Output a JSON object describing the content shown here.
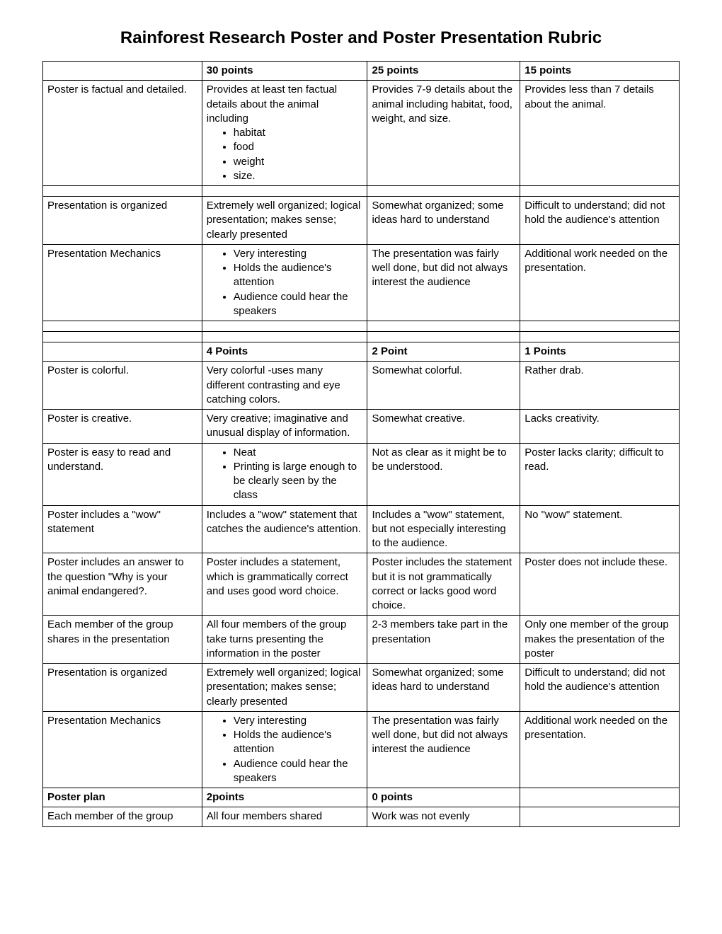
{
  "title": "Rainforest Research Poster and Poster Presentation Rubric",
  "hdr1": {
    "c1": "",
    "c2": "30 points",
    "c3": "25 points",
    "c4": "15 points"
  },
  "r1": {
    "criterion": "Poster is factual and detailed.",
    "lead": "Provides at least ten factual details about the animal including",
    "bullets": [
      "habitat",
      "food",
      "weight",
      "size."
    ],
    "c3": "Provides 7-9 details about the animal including habitat, food, weight, and size.",
    "c4": "Provides less than 7 details about the animal."
  },
  "r2": {
    "criterion": "Presentation is organized",
    "c2": "Extremely well organized; logical presentation; makes sense; clearly presented",
    "c3": "Somewhat organized; some ideas hard to understand",
    "c4": "Difficult to understand; did not hold the audience's attention"
  },
  "r3": {
    "criterion": "Presentation Mechanics",
    "bullets": [
      "Very interesting",
      "Holds the audience's attention",
      "Audience could hear the speakers"
    ],
    "c3": "The presentation was fairly well done, but did not always interest the audience",
    "c4": "Additional work needed on the presentation."
  },
  "hdr2": {
    "c1": "",
    "c2": "4 Points",
    "c3": "2 Point",
    "c4": "1 Points"
  },
  "r4": {
    "criterion": "Poster is colorful.",
    "c2": "Very colorful -uses many different contrasting and eye catching colors.",
    "c3": "Somewhat colorful.",
    "c4": "Rather drab."
  },
  "r5": {
    "criterion": "Poster is creative.",
    "c2": "Very creative; imaginative and unusual display of information.",
    "c3": "Somewhat creative.",
    "c4": "Lacks creativity."
  },
  "r6": {
    "criterion": "Poster is easy to read and understand.",
    "bullets": [
      "Neat",
      "Printing is large enough to be clearly seen by the class"
    ],
    "c3": "Not as clear as it might be to be understood.",
    "c4": "Poster lacks clarity; difficult to read."
  },
  "r7": {
    "criterion": "Poster includes a \"wow\" statement",
    "c2": "Includes a \"wow\" statement that catches the audience's attention.",
    "c3": "Includes a \"wow\" statement, but not especially interesting to the audience.",
    "c4": "No \"wow\" statement."
  },
  "r8": {
    "criterion": "Poster includes an answer to the question \"Why is your animal endangered?.",
    "c2": "Poster includes a statement, which is grammatically correct and uses good word choice.",
    "c3": "Poster includes the statement but it is not grammatically correct or lacks good word choice.",
    "c4": "Poster does not include these."
  },
  "r9": {
    "criterion": "Each member of the group shares in the presentation",
    "c2": "All four members of the group take turns presenting the information in the poster",
    "c3": "2-3 members take part in the presentation",
    "c4": "Only one member of the group makes the presentation of the poster"
  },
  "r10": {
    "criterion": "Presentation is organized",
    "c2": "Extremely well organized; logical presentation; makes sense; clearly presented",
    "c3": "Somewhat organized; some ideas hard to understand",
    "c4": "Difficult to understand; did not hold the audience's attention"
  },
  "r11": {
    "criterion": "Presentation Mechanics",
    "bullets": [
      "Very interesting",
      "Holds the audience's attention",
      "Audience could hear the speakers"
    ],
    "c3": "The presentation was fairly well done, but did not always interest the audience",
    "c4": "Additional work needed on the presentation."
  },
  "hdr3": {
    "c1": "Poster plan",
    "c2": "2points",
    "c3": "0 points",
    "c4": ""
  },
  "r12": {
    "criterion": "Each member of the group",
    "c2": "All four members shared",
    "c3": "Work was not evenly",
    "c4": ""
  }
}
